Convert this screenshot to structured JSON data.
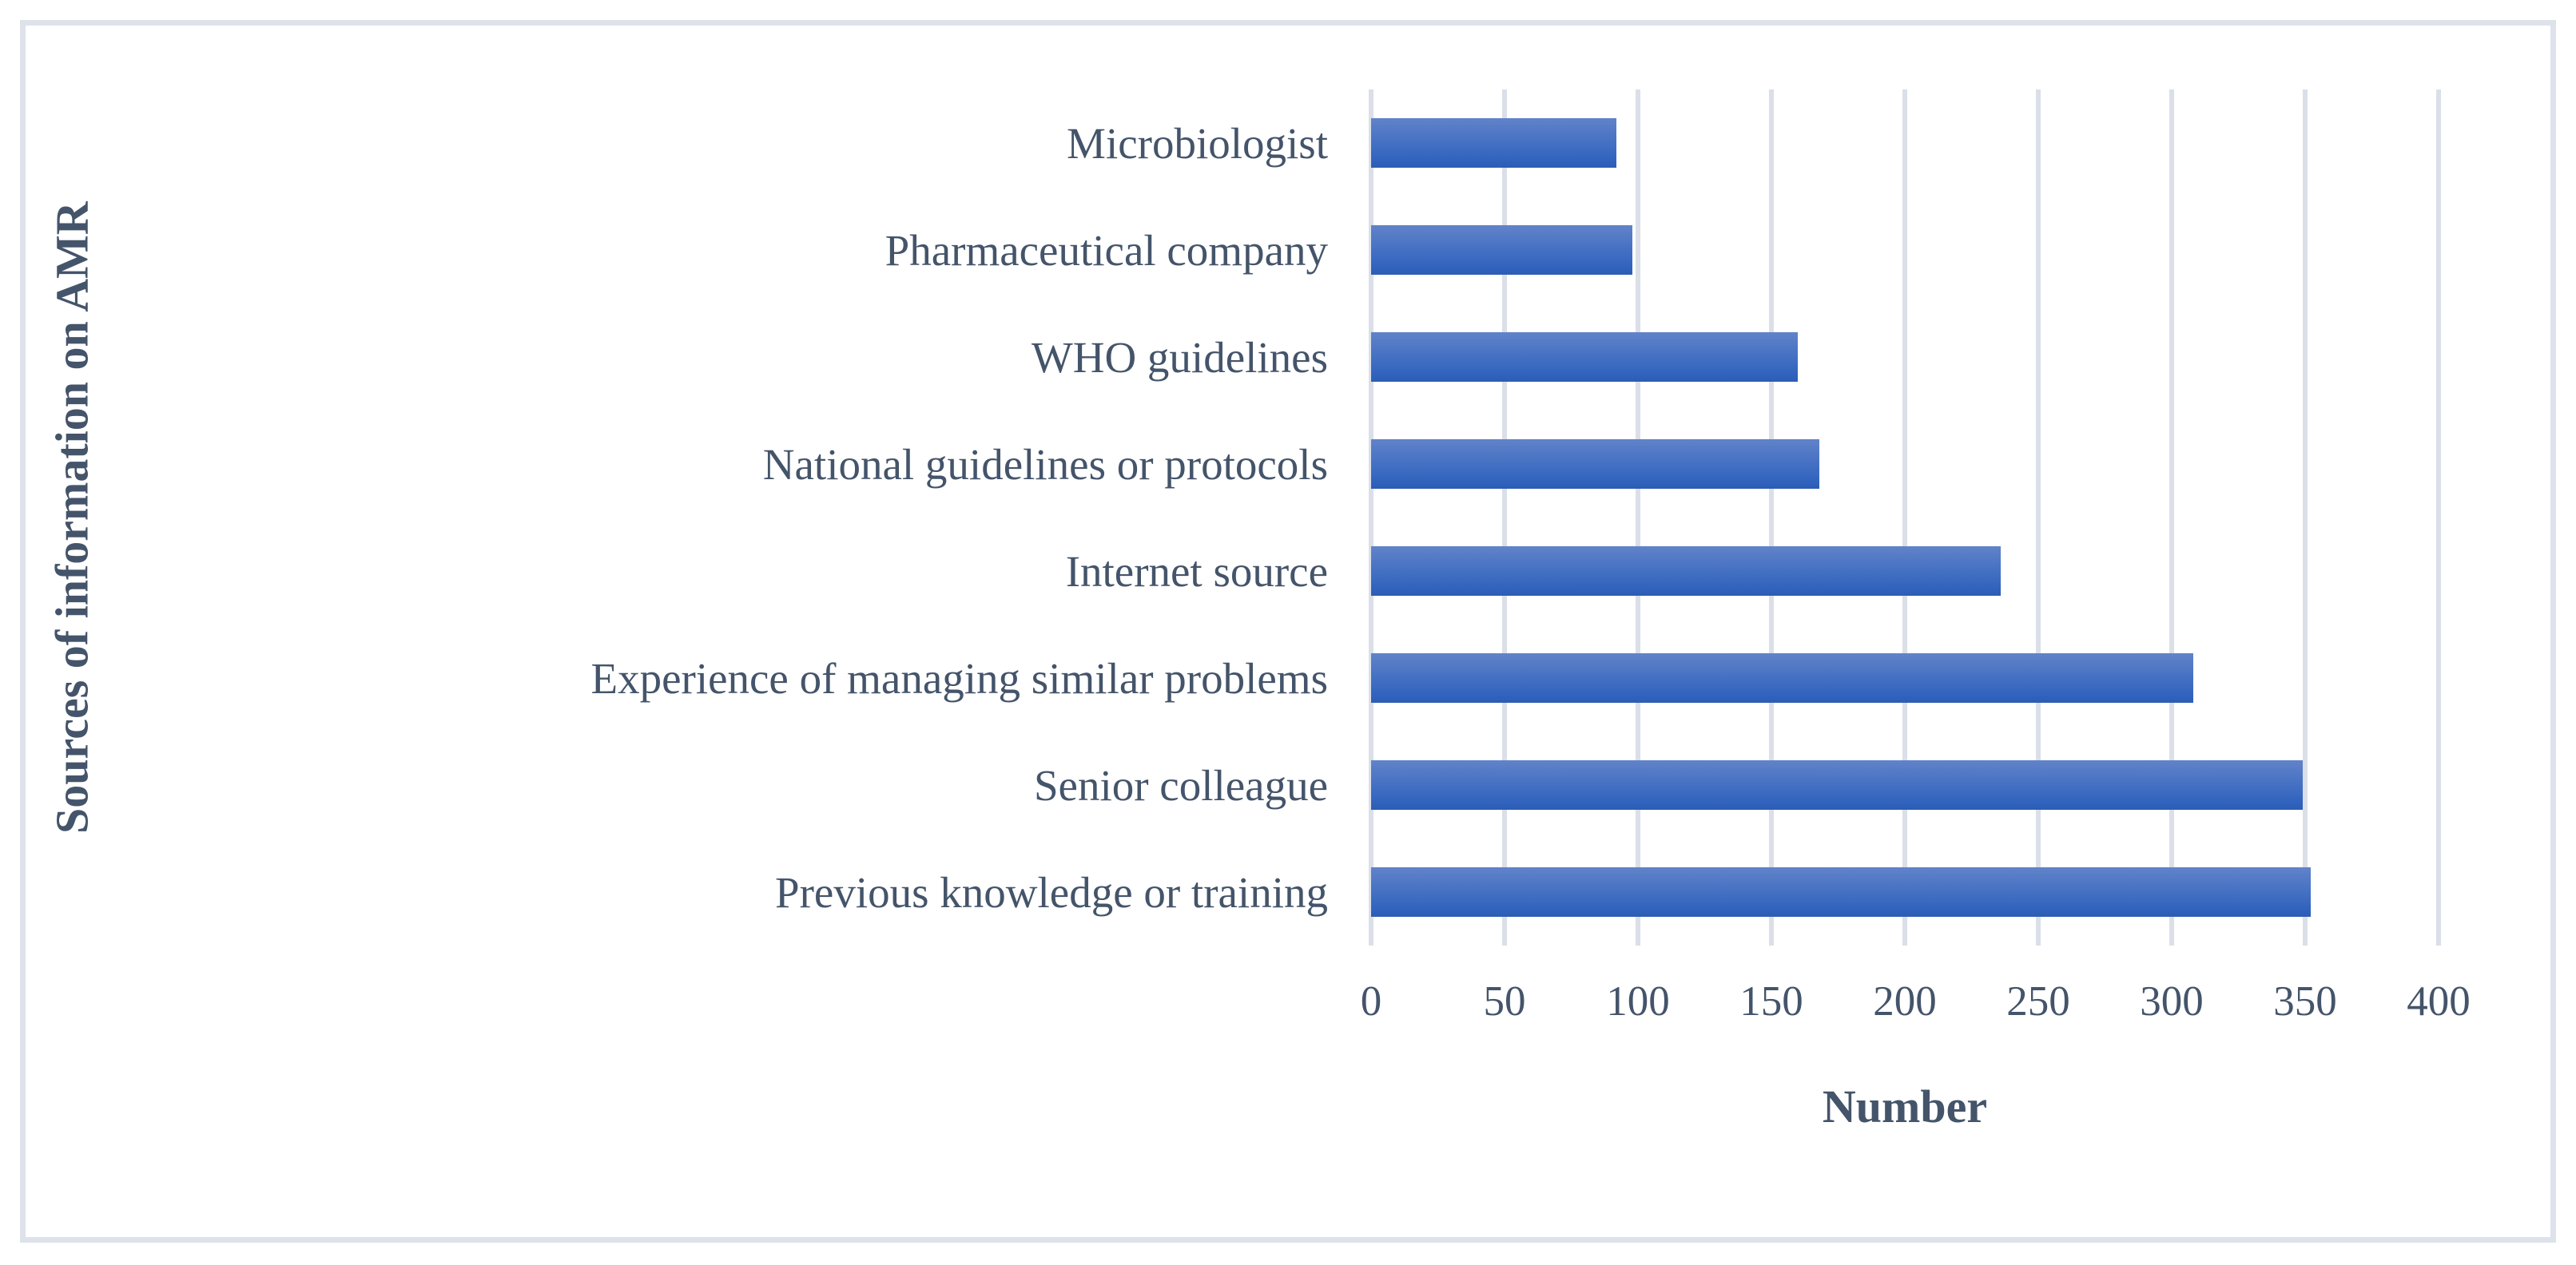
{
  "figure": {
    "background": "#ffffff",
    "border_color": "#dee2ea"
  },
  "chart_data": {
    "type": "bar",
    "orientation": "horizontal",
    "title": "",
    "categories": [
      "Microbiologist",
      "Pharmaceutical company",
      "WHO guidelines",
      "National guidelines or protocols",
      "Internet source",
      "Experience of managing similar problems",
      "Senior colleague",
      "Previous knowledge or training"
    ],
    "values": [
      92,
      98,
      160,
      168,
      236,
      308,
      349,
      352
    ],
    "xlabel": "Number",
    "ylabel": "Sources of information on AMR",
    "xlim": [
      0,
      400
    ],
    "xticks": [
      0,
      50,
      100,
      150,
      200,
      250,
      300,
      350,
      400
    ],
    "grid": "vertical-gridlines-on",
    "legend": "none",
    "colors": {
      "bar_gradient_top": "#6183c9",
      "bar_gradient_bottom": "#3063be",
      "bar_gradient_edge": "#2d5cb2",
      "gridline": "#dadfe8",
      "text": "#44546a",
      "frame_border": "#dee2ea"
    }
  }
}
